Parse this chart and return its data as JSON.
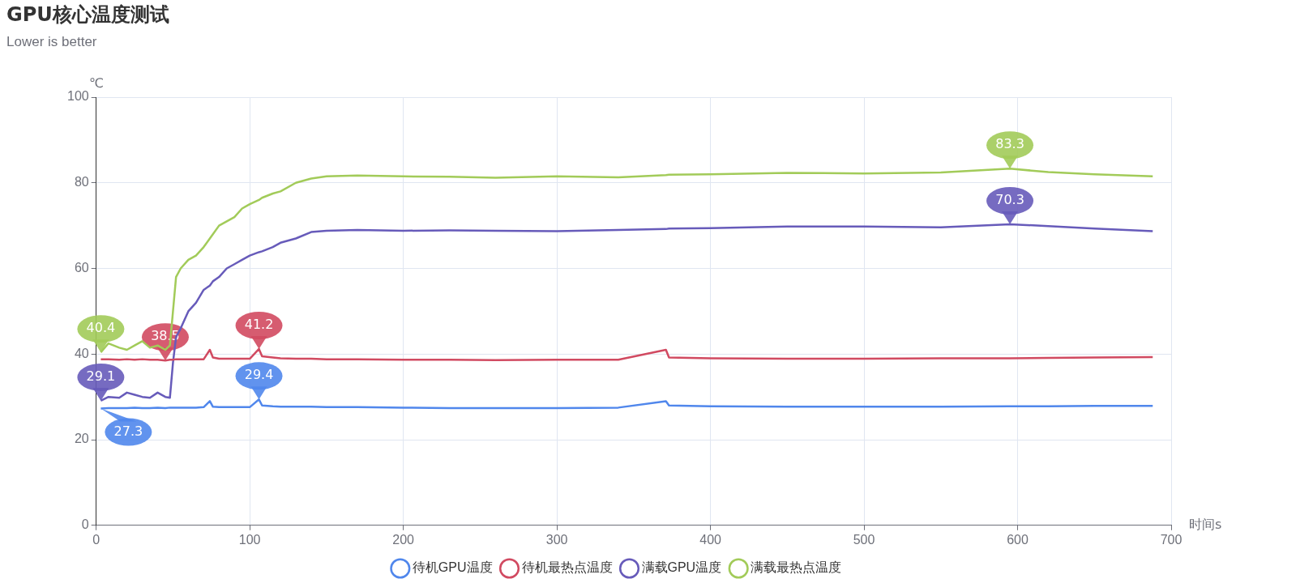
{
  "chart_data": {
    "type": "line",
    "title": "GPU核心温度测试",
    "subtitle": "Lower is better",
    "xlabel": "时间s",
    "ylabel": "℃",
    "x": [
      3,
      8,
      15,
      20,
      25,
      30,
      35,
      40,
      45,
      48,
      50,
      52,
      55,
      60,
      65,
      70,
      74,
      76,
      80,
      85,
      90,
      95,
      100,
      106,
      108,
      115,
      120,
      130,
      140,
      150,
      170,
      200,
      230,
      260,
      300,
      340,
      371,
      373,
      400,
      450,
      500,
      550,
      595,
      620,
      650,
      688
    ],
    "series": [
      {
        "name": "待机GPU温度",
        "color": "#5087ec",
        "values": [
          27.3,
          27.4,
          27.4,
          27.4,
          27.5,
          27.4,
          27.4,
          27.5,
          27.4,
          27.5,
          27.5,
          27.5,
          27.5,
          27.5,
          27.5,
          27.6,
          29.0,
          27.7,
          27.6,
          27.6,
          27.6,
          27.6,
          27.6,
          29.4,
          28.0,
          27.8,
          27.7,
          27.7,
          27.7,
          27.6,
          27.6,
          27.5,
          27.4,
          27.4,
          27.4,
          27.5,
          29.0,
          28.0,
          27.8,
          27.7,
          27.7,
          27.7,
          27.8,
          27.8,
          27.9,
          27.9
        ]
      },
      {
        "name": "待机最热点温度",
        "color": "#d14a61",
        "values": [
          38.8,
          38.8,
          38.7,
          38.8,
          38.7,
          38.8,
          38.7,
          38.7,
          38.5,
          38.7,
          38.7,
          38.8,
          38.8,
          38.8,
          38.8,
          38.8,
          41.0,
          39.2,
          38.9,
          38.9,
          38.9,
          38.9,
          38.9,
          41.2,
          39.5,
          39.2,
          39.0,
          38.9,
          38.9,
          38.8,
          38.8,
          38.7,
          38.7,
          38.6,
          38.7,
          38.7,
          41.0,
          39.2,
          39.0,
          38.9,
          38.9,
          39.0,
          39.0,
          39.1,
          39.2,
          39.3
        ]
      },
      {
        "name": "满载GPU温度",
        "color": "#675bba",
        "values": [
          29.1,
          30.0,
          29.8,
          31.0,
          30.5,
          30.0,
          29.8,
          31.0,
          30.0,
          29.8,
          38,
          44,
          46,
          50,
          52,
          55,
          56,
          57,
          58,
          60,
          61,
          62,
          63,
          63.8,
          64,
          65,
          66,
          67,
          68.5,
          68.8,
          69.0,
          68.8,
          68.9,
          68.8,
          68.7,
          69.0,
          69.2,
          69.3,
          69.4,
          69.8,
          69.8,
          69.6,
          70.3,
          69.9,
          69.3,
          68.7
        ]
      },
      {
        "name": "满载最热点温度",
        "color": "#a2cb59",
        "values": [
          40.4,
          42.5,
          41.5,
          41.0,
          42.0,
          43.0,
          41.5,
          42.0,
          41.0,
          42.0,
          50,
          58,
          60,
          62,
          63,
          65,
          67,
          68,
          70,
          71,
          72,
          74,
          75,
          76,
          76.5,
          77.5,
          78,
          80,
          81,
          81.5,
          81.7,
          81.5,
          81.4,
          81.2,
          81.5,
          81.3,
          81.8,
          81.9,
          82,
          82.3,
          82.2,
          82.4,
          83.3,
          82.5,
          82,
          81.5
        ]
      }
    ],
    "xlim": [
      0,
      700
    ],
    "xticks": [
      0,
      100,
      200,
      300,
      400,
      500,
      600,
      700
    ],
    "ylim": [
      0,
      100
    ],
    "yticks": [
      0,
      20,
      40,
      60,
      80,
      100
    ],
    "grid": true,
    "legend": "bottom",
    "marker": "none",
    "line_style": "solid",
    "annotations": [
      {
        "text": "27.3",
        "x": 3,
        "y": 27.3
      },
      {
        "text": "29.4",
        "x": 106,
        "y": 29.4
      },
      {
        "text": "38.5",
        "x": 45,
        "y": 38.5
      },
      {
        "text": "41.2",
        "x": 106,
        "y": 41.2
      },
      {
        "text": "29.1",
        "x": 3,
        "y": 29.1
      },
      {
        "text": "70.3",
        "x": 595,
        "y": 70.3
      },
      {
        "text": "40.4",
        "x": 3,
        "y": 40.4
      },
      {
        "text": "83.3",
        "x": 595,
        "y": 83.3
      }
    ]
  }
}
